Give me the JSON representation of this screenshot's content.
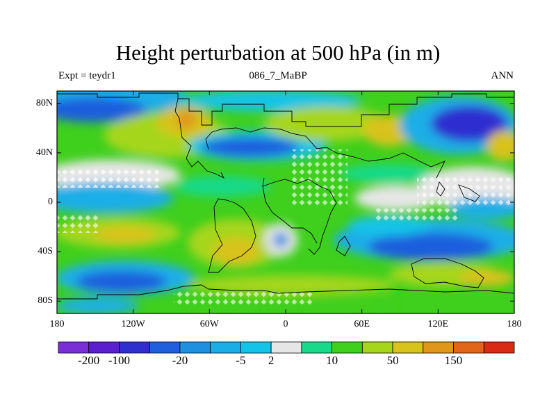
{
  "figure": {
    "title": "Height perturbation at 500 hPa (in m)",
    "left_subtitle": "Expt = teydr1",
    "center_subtitle": "086_7_MaBP",
    "right_subtitle": "ANN"
  },
  "axes": {
    "lat_ticks": [
      "80N",
      "40N",
      "0",
      "40S",
      "80S"
    ],
    "lon_ticks": [
      "180",
      "120W",
      "60W",
      "0",
      "60E",
      "120E",
      "180"
    ]
  },
  "colorbar": {
    "colors": [
      "#7a2ed6",
      "#5b1fd0",
      "#2f2fd0",
      "#1f5fdd",
      "#1f8fe0",
      "#1aaee6",
      "#14c3e8",
      "#e6e6e6",
      "#18d98a",
      "#3fcf1d",
      "#a6d61a",
      "#d8c21c",
      "#e0961a",
      "#e2661a",
      "#d92a16"
    ],
    "labels": [
      {
        "text": "-200",
        "after_box": 1
      },
      {
        "text": "-100",
        "after_box": 2
      },
      {
        "text": "-20",
        "after_box": 4
      },
      {
        "text": "-5",
        "after_box": 6
      },
      {
        "text": "2",
        "after_box": 7
      },
      {
        "text": "10",
        "after_box": 9
      },
      {
        "text": "50",
        "after_box": 11
      },
      {
        "text": "150",
        "after_box": 13
      }
    ]
  }
}
